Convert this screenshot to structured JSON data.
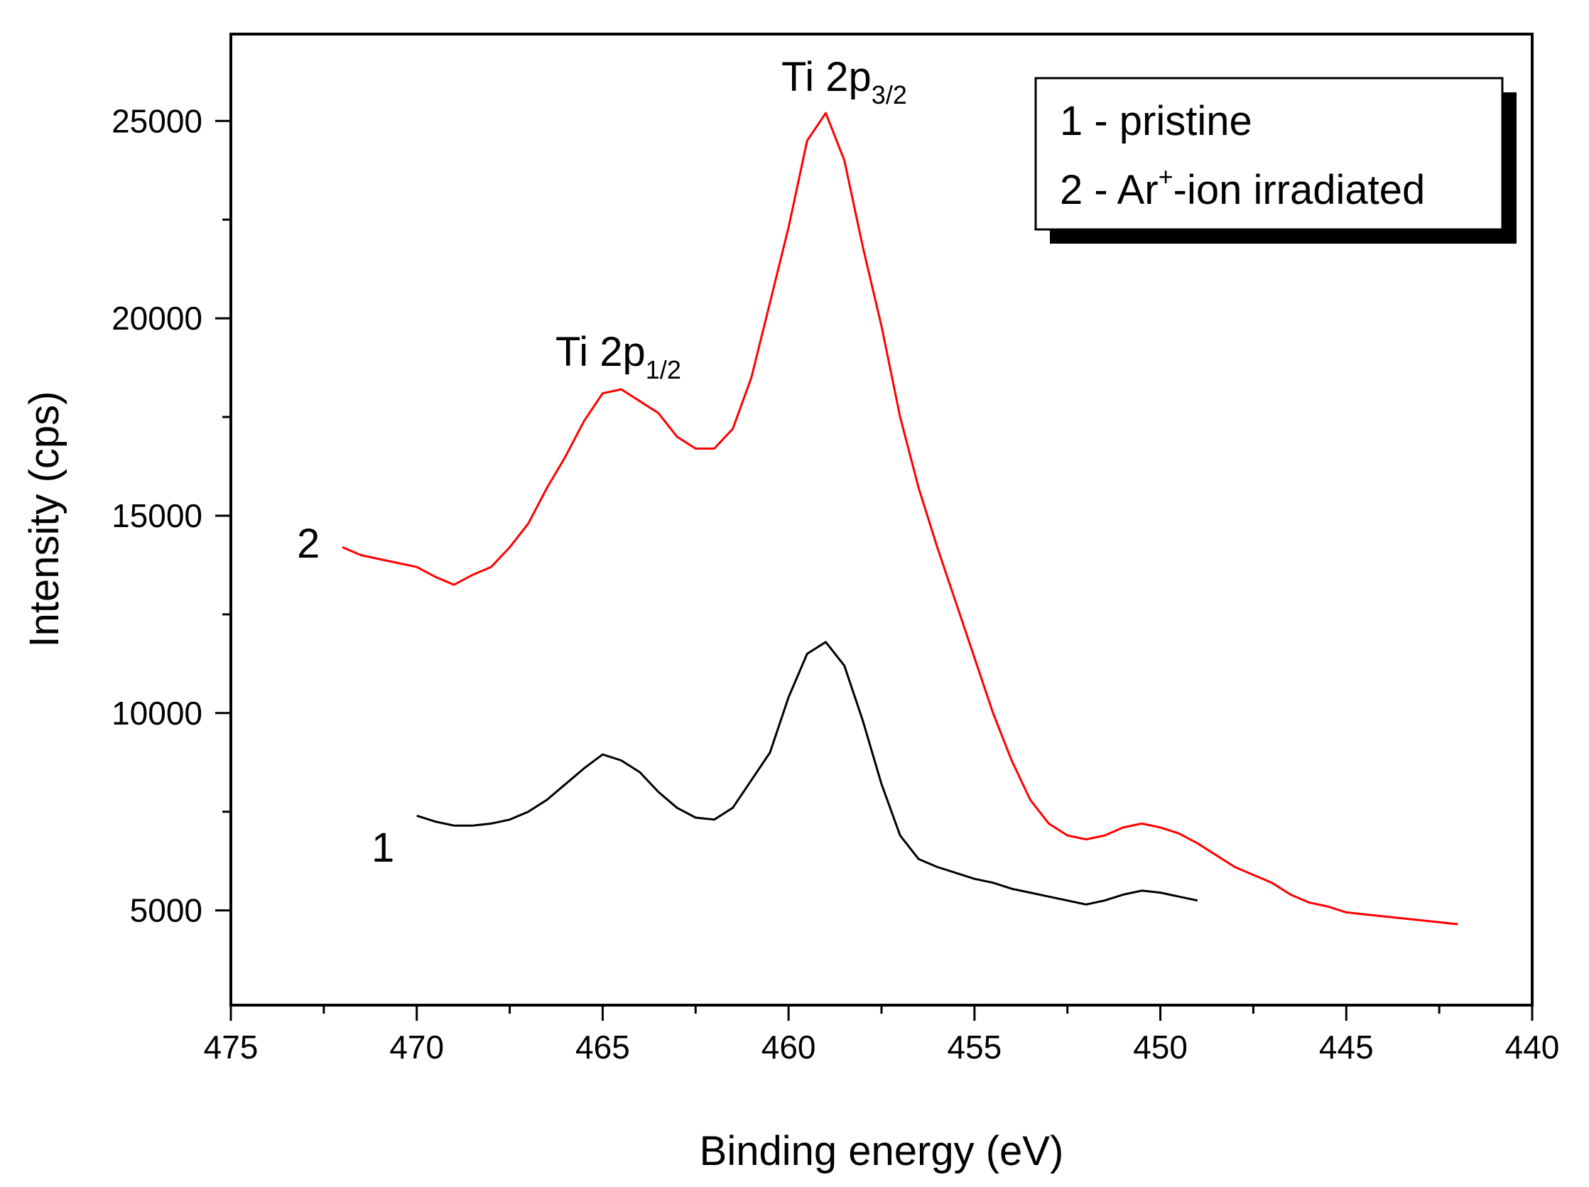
{
  "chart_data": {
    "type": "line",
    "title": "",
    "xlabel": "Binding energy (eV)",
    "ylabel": "Intensity (cps)",
    "xlim": [
      475,
      440
    ],
    "ylim": [
      2600,
      27200
    ],
    "x_reversed": true,
    "grid": false,
    "x_ticks": [
      475,
      470,
      465,
      460,
      455,
      450,
      445,
      440
    ],
    "y_ticks": [
      5000,
      10000,
      15000,
      20000,
      25000
    ],
    "legend": {
      "placement": "top-right",
      "entries": [
        "1 - pristine",
        "2 - Ar⁺-ion irradiated"
      ],
      "line1": "1 - pristine",
      "line2_pre": "2 - Ar",
      "line2_sup": "+",
      "line2_post": "-ion irradiated"
    },
    "annotations": {
      "peak_low_main": "Ti 2p",
      "peak_low_sub": "1/2",
      "peak_high_main": "Ti 2p",
      "peak_high_sub": "3/2",
      "curve1_label": "1",
      "curve2_label": "2"
    },
    "series": [
      {
        "name": "1",
        "color": "#000000",
        "x": [
          470,
          469.5,
          469,
          468.5,
          468,
          467.5,
          467,
          466.5,
          466,
          465.5,
          465,
          464.5,
          464,
          463.5,
          463,
          462.5,
          462,
          461.5,
          461,
          460.5,
          460,
          459.5,
          459,
          458.5,
          458,
          457.5,
          457,
          456.5,
          456,
          455.5,
          455,
          454.5,
          454,
          453.5,
          453,
          452.5,
          452,
          451.5,
          451,
          450.5,
          450,
          449.5,
          449
        ],
        "y": [
          7400,
          7250,
          7150,
          7150,
          7200,
          7300,
          7500,
          7800,
          8200,
          8600,
          8950,
          8800,
          8500,
          8000,
          7600,
          7350,
          7300,
          7600,
          8300,
          9000,
          10400,
          11500,
          11800,
          11200,
          9800,
          8200,
          6900,
          6300,
          6100,
          5950,
          5800,
          5700,
          5550,
          5450,
          5350,
          5250,
          5150,
          5250,
          5400,
          5500,
          5450,
          5350,
          5250
        ]
      },
      {
        "name": "2",
        "color": "#ff0000",
        "x": [
          472,
          471.5,
          471,
          470.5,
          470,
          469.5,
          469,
          468.5,
          468,
          467.5,
          467,
          466.5,
          466,
          465.5,
          465,
          464.5,
          464,
          463.5,
          463,
          462.5,
          462,
          461.5,
          461,
          460.5,
          460,
          459.5,
          459,
          458.5,
          458,
          457.5,
          457,
          456.5,
          456,
          455.5,
          455,
          454.5,
          454,
          453.5,
          453,
          452.5,
          452,
          451.5,
          451,
          450.5,
          450,
          449.5,
          449,
          448.5,
          448,
          447.5,
          447,
          446.5,
          446,
          445.5,
          445,
          444.5,
          444,
          443.5,
          443,
          442.5,
          442
        ],
        "y": [
          14200,
          14000,
          13900,
          13800,
          13700,
          13450,
          13250,
          13500,
          13700,
          14200,
          14800,
          15700,
          16500,
          17400,
          18100,
          18200,
          17900,
          17600,
          17000,
          16700,
          16700,
          17200,
          18500,
          20400,
          22300,
          24500,
          25200,
          24000,
          21800,
          19800,
          17500,
          15700,
          14200,
          12800,
          11400,
          10000,
          8800,
          7800,
          7200,
          6900,
          6800,
          6900,
          7100,
          7200,
          7100,
          6950,
          6700,
          6400,
          6100,
          5900,
          5700,
          5400,
          5200,
          5100,
          4950,
          4900,
          4850,
          4800,
          4750,
          4700,
          4650
        ]
      }
    ]
  }
}
